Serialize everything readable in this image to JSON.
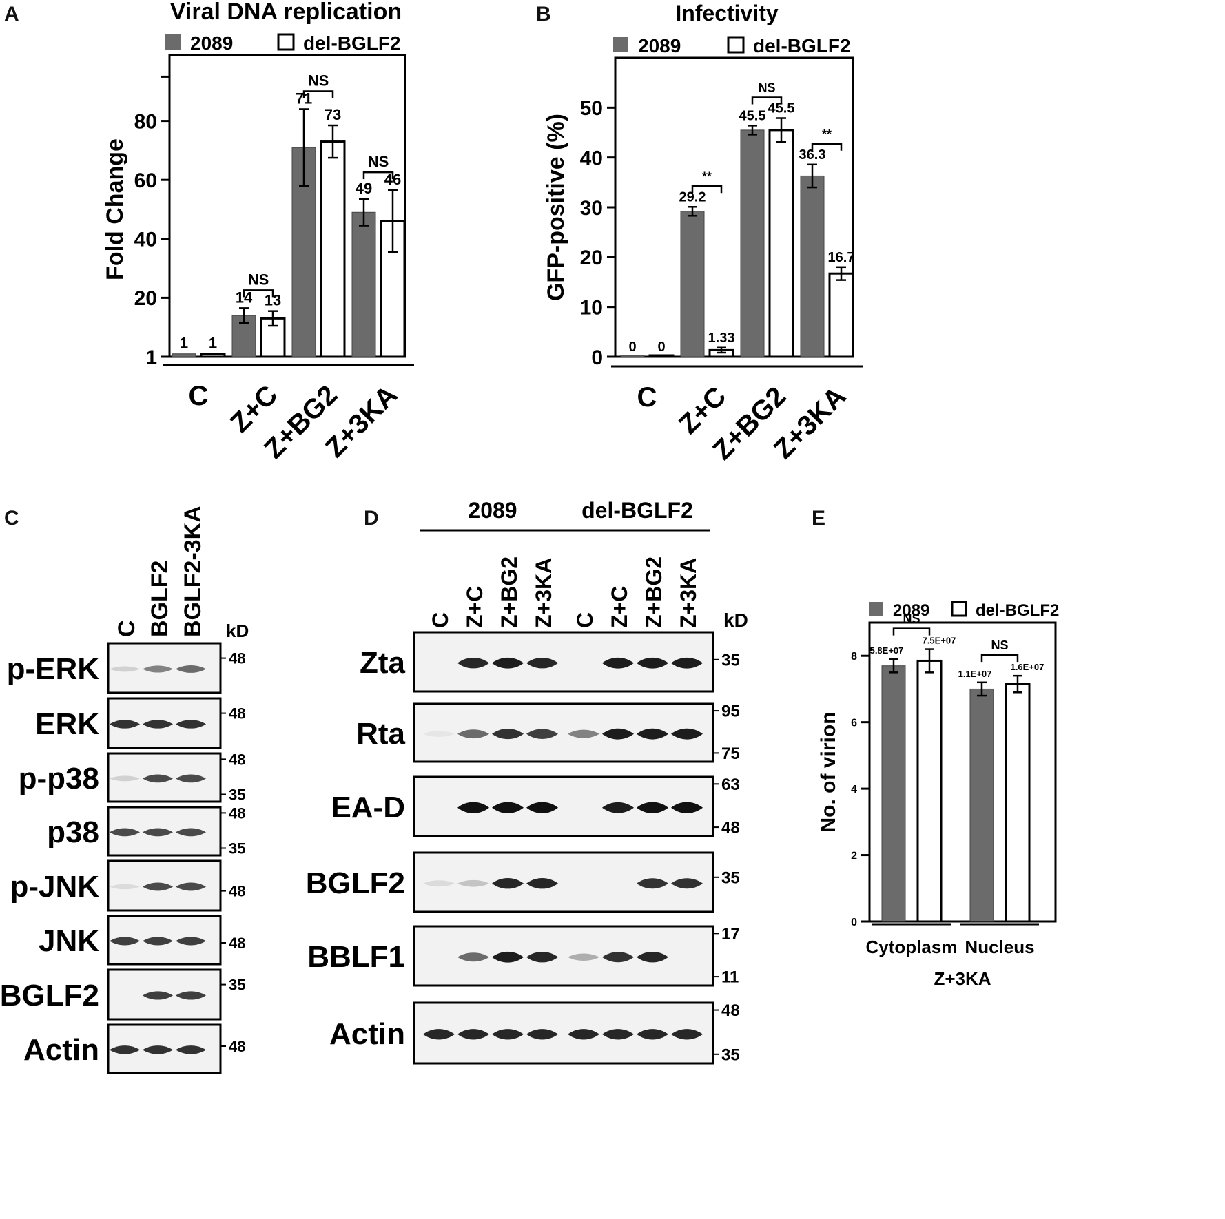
{
  "panels": {
    "A": "A",
    "B": "B",
    "C": "C",
    "D": "D",
    "E": "E"
  },
  "colors": {
    "filled": "#6b6b6b",
    "open": "#ffffff",
    "axis": "#000000",
    "blot_bg": "#f2f2f2",
    "band": "#111111"
  },
  "chart_data": [
    {
      "type": "bar",
      "panel": "A",
      "title": "Viral DNA replication",
      "xlabel": "",
      "ylabel": "Fold Change",
      "ylim": [
        0,
        100
      ],
      "yticks": [
        "1",
        "20",
        "40",
        "60",
        "80"
      ],
      "categories": [
        "C",
        "Z+C",
        "Z+BG2",
        "Z+3KA"
      ],
      "legend": "top",
      "series": [
        {
          "name": "2089",
          "style": "filled",
          "values": [
            1,
            14,
            71,
            49
          ],
          "errors": [
            0,
            2.5,
            13,
            4.5
          ],
          "labels": [
            "1",
            "14",
            "71",
            "49"
          ]
        },
        {
          "name": "del-BGLF2",
          "style": "open",
          "values": [
            1,
            13,
            73,
            46
          ],
          "errors": [
            0,
            2.5,
            5.5,
            10.5
          ],
          "labels": [
            "1",
            "13",
            "73",
            "46"
          ]
        }
      ],
      "significance": [
        {
          "category": "Z+C",
          "label": "NS"
        },
        {
          "category": "Z+BG2",
          "label": "NS"
        },
        {
          "category": "Z+3KA",
          "label": "NS"
        }
      ]
    },
    {
      "type": "bar",
      "panel": "B",
      "title": "Infectivity",
      "xlabel": "",
      "ylabel": "GFP-positive (%)",
      "ylim": [
        0,
        60
      ],
      "yticks": [
        "0",
        "10",
        "20",
        "30",
        "40",
        "50"
      ],
      "categories": [
        "C",
        "Z+C",
        "Z+BG2",
        "Z+3KA"
      ],
      "legend": "top",
      "series": [
        {
          "name": "2089",
          "style": "filled",
          "values": [
            0,
            29.2,
            45.5,
            36.3
          ],
          "errors": [
            0,
            0.9,
            0.9,
            2.3
          ],
          "labels": [
            "0",
            "29.2",
            "45.5",
            "36.3"
          ]
        },
        {
          "name": "del-BGLF2",
          "style": "open",
          "values": [
            0,
            1.33,
            45.5,
            16.7
          ],
          "errors": [
            0,
            0.5,
            2.4,
            1.3
          ],
          "labels": [
            "0",
            "1.33",
            "45.5",
            "16.7"
          ]
        }
      ],
      "significance": [
        {
          "category": "Z+C",
          "label": "**"
        },
        {
          "category": "Z+BG2",
          "label": "NS"
        },
        {
          "category": "Z+3KA",
          "label": "**"
        }
      ]
    },
    {
      "type": "bar",
      "panel": "E",
      "title": "",
      "xlabel": "Z+3KA",
      "ylabel": "No. of virion",
      "ylim": [
        0,
        9
      ],
      "yticks": [
        "0",
        "2",
        "4",
        "6",
        "8"
      ],
      "categories": [
        "Cytoplasm",
        "Nucleus"
      ],
      "legend": "top",
      "series": [
        {
          "name": "2089",
          "style": "filled",
          "values": [
            7.7,
            7.0
          ],
          "errors": [
            0.2,
            0.2
          ],
          "labels": [
            "5.8E+07",
            "1.1E+07"
          ]
        },
        {
          "name": "del-BGLF2",
          "style": "open",
          "values": [
            7.85,
            7.15
          ],
          "errors": [
            0.35,
            0.25
          ],
          "labels": [
            "7.5E+07",
            "1.6E+07"
          ]
        }
      ],
      "significance": [
        {
          "category": "Cytoplasm",
          "label": "NS"
        },
        {
          "category": "Nucleus",
          "label": "NS"
        }
      ]
    }
  ],
  "blotC": {
    "lanes": [
      "C",
      "BGLF2",
      "BGLF2-3KA"
    ],
    "unit": "kD",
    "rows": [
      {
        "label": "p-ERK",
        "markers": [
          "48"
        ],
        "bands": [
          0.15,
          0.5,
          0.6
        ]
      },
      {
        "label": "ERK",
        "markers": [
          "48"
        ],
        "bands": [
          0.85,
          0.85,
          0.85
        ]
      },
      {
        "label": "p-p38",
        "markers": [
          "48",
          "35"
        ],
        "bands": [
          0.15,
          0.75,
          0.75
        ]
      },
      {
        "label": "p38",
        "markers": [
          "48",
          "35"
        ],
        "bands": [
          0.75,
          0.75,
          0.75
        ]
      },
      {
        "label": "p-JNK",
        "markers": [
          "48"
        ],
        "bands": [
          0.1,
          0.75,
          0.75
        ]
      },
      {
        "label": "JNK",
        "markers": [
          "48"
        ],
        "bands": [
          0.8,
          0.8,
          0.8
        ]
      },
      {
        "label": "BGLF2",
        "markers": [
          "35"
        ],
        "bands": [
          0,
          0.8,
          0.8
        ]
      },
      {
        "label": "Actin",
        "markers": [
          "48"
        ],
        "bands": [
          0.85,
          0.85,
          0.85
        ]
      }
    ]
  },
  "blotD": {
    "groups": [
      "2089",
      "del-BGLF2"
    ],
    "lanes": [
      "C",
      "Z+C",
      "Z+BG2",
      "Z+3KA",
      "C",
      "Z+C",
      "Z+BG2",
      "Z+3KA"
    ],
    "unit": "kD",
    "rows": [
      {
        "label": "Zta",
        "markers": [
          "35"
        ],
        "bands": [
          0,
          0.9,
          0.95,
          0.9,
          0,
          0.95,
          0.95,
          0.95
        ]
      },
      {
        "label": "Rta",
        "markers": [
          "95",
          "75"
        ],
        "bands": [
          0.05,
          0.6,
          0.85,
          0.8,
          0.5,
          0.95,
          0.95,
          0.95
        ]
      },
      {
        "label": "EA-D",
        "markers": [
          "63",
          "48"
        ],
        "bands": [
          0,
          1,
          1,
          1,
          0,
          0.95,
          1,
          1
        ]
      },
      {
        "label": "BGLF2",
        "markers": [
          "35"
        ],
        "bands": [
          0.1,
          0.2,
          0.9,
          0.9,
          0,
          0,
          0.85,
          0.85
        ]
      },
      {
        "label": "BBLF1",
        "markers": [
          "17",
          "11"
        ],
        "bands": [
          0,
          0.6,
          0.95,
          0.9,
          0.3,
          0.85,
          0.9,
          0
        ]
      },
      {
        "label": "Actin",
        "markers": [
          "48",
          "35"
        ],
        "bands": [
          0.9,
          0.9,
          0.9,
          0.9,
          0.9,
          0.9,
          0.9,
          0.9
        ]
      }
    ]
  }
}
